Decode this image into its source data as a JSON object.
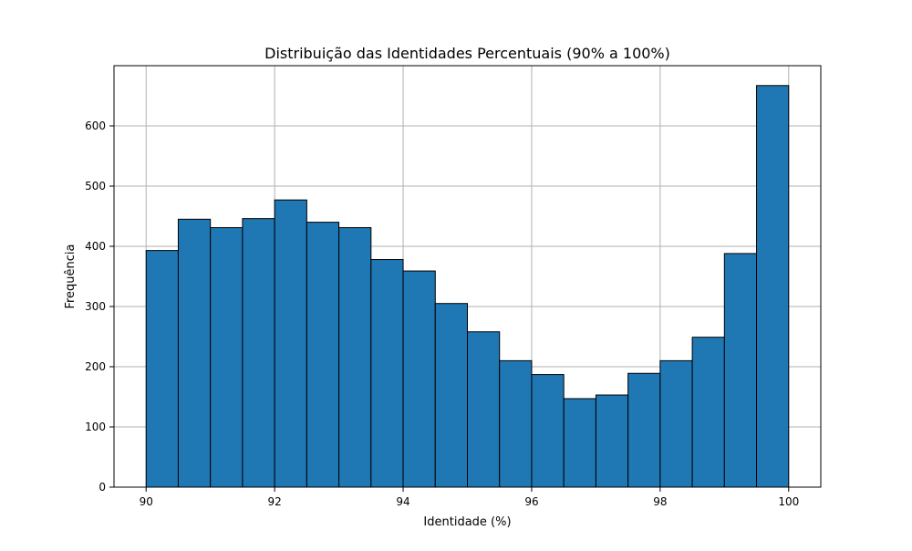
{
  "chart_data": {
    "type": "bar",
    "title": "Distribuição das Identidades Percentuais (90% a 100%)",
    "xlabel": "Identidade (%)",
    "ylabel": "Frequência",
    "bin_edges": [
      90,
      90.5,
      91,
      91.5,
      92,
      92.5,
      93,
      93.5,
      94,
      94.5,
      95,
      95.5,
      96,
      96.5,
      97,
      97.5,
      98,
      98.5,
      99,
      99.5,
      100
    ],
    "values": [
      393,
      445,
      431,
      446,
      477,
      440,
      431,
      378,
      359,
      305,
      258,
      210,
      187,
      147,
      153,
      189,
      210,
      249,
      388,
      667
    ],
    "xlim": [
      89.5,
      100.5
    ],
    "ylim": [
      0,
      700
    ],
    "xticks": [
      90,
      92,
      94,
      96,
      98,
      100
    ],
    "yticks": [
      0,
      100,
      200,
      300,
      400,
      500,
      600
    ],
    "grid": true,
    "bar_color": "#1f77b4",
    "edge_color": "#000000"
  }
}
